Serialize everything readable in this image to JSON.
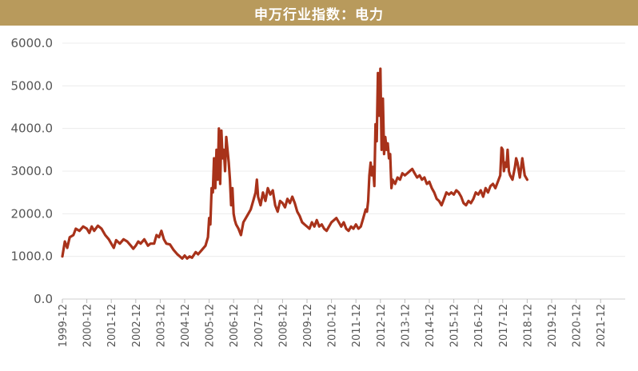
{
  "chart_data": {
    "type": "line",
    "title": "申万行业指数：电力",
    "xlabel": "",
    "ylabel": "",
    "ylim": [
      0,
      6000
    ],
    "yticks": [
      "0.0",
      "1000.0",
      "2000.0",
      "3000.0",
      "4000.0",
      "5000.0",
      "6000.0"
    ],
    "categories": [
      "1999-12",
      "2000-12",
      "2001-12",
      "2002-12",
      "2003-12",
      "2004-12",
      "2005-12",
      "2006-12",
      "2007-12",
      "2008-12",
      "2009-12",
      "2010-12",
      "2011-12",
      "2012-12",
      "2013-12",
      "2014-12",
      "2015-12",
      "2016-12",
      "2017-12",
      "2018-12",
      "2019-12",
      "2020-12",
      "2021-12"
    ],
    "series": [
      {
        "color": "#a8321a",
        "points": [
          [
            0.0,
            1000
          ],
          [
            0.1,
            1350
          ],
          [
            0.2,
            1200
          ],
          [
            0.3,
            1450
          ],
          [
            0.45,
            1500
          ],
          [
            0.55,
            1650
          ],
          [
            0.7,
            1600
          ],
          [
            0.85,
            1700
          ],
          [
            1.0,
            1650
          ],
          [
            1.1,
            1550
          ],
          [
            1.2,
            1700
          ],
          [
            1.3,
            1600
          ],
          [
            1.45,
            1720
          ],
          [
            1.6,
            1650
          ],
          [
            1.75,
            1500
          ],
          [
            1.9,
            1400
          ],
          [
            2.0,
            1300
          ],
          [
            2.1,
            1200
          ],
          [
            2.2,
            1380
          ],
          [
            2.35,
            1300
          ],
          [
            2.5,
            1400
          ],
          [
            2.65,
            1350
          ],
          [
            2.8,
            1250
          ],
          [
            2.9,
            1180
          ],
          [
            3.0,
            1250
          ],
          [
            3.1,
            1350
          ],
          [
            3.2,
            1300
          ],
          [
            3.35,
            1400
          ],
          [
            3.5,
            1250
          ],
          [
            3.6,
            1300
          ],
          [
            3.75,
            1300
          ],
          [
            3.85,
            1500
          ],
          [
            3.95,
            1450
          ],
          [
            4.05,
            1600
          ],
          [
            4.15,
            1400
          ],
          [
            4.25,
            1300
          ],
          [
            4.4,
            1280
          ],
          [
            4.55,
            1150
          ],
          [
            4.7,
            1050
          ],
          [
            4.8,
            1000
          ],
          [
            4.9,
            950
          ],
          [
            5.0,
            1020
          ],
          [
            5.1,
            950
          ],
          [
            5.2,
            1000
          ],
          [
            5.3,
            970
          ],
          [
            5.45,
            1100
          ],
          [
            5.55,
            1050
          ],
          [
            5.7,
            1150
          ],
          [
            5.85,
            1250
          ],
          [
            5.95,
            1450
          ],
          [
            6.0,
            1900
          ],
          [
            6.05,
            1750
          ],
          [
            6.1,
            2600
          ],
          [
            6.15,
            2500
          ],
          [
            6.2,
            3300
          ],
          [
            6.25,
            2600
          ],
          [
            6.3,
            3500
          ],
          [
            6.35,
            2800
          ],
          [
            6.4,
            4000
          ],
          [
            6.45,
            2700
          ],
          [
            6.5,
            3950
          ],
          [
            6.55,
            3300
          ],
          [
            6.6,
            3500
          ],
          [
            6.65,
            3000
          ],
          [
            6.7,
            3800
          ],
          [
            6.8,
            3200
          ],
          [
            6.85,
            2800
          ],
          [
            6.9,
            2200
          ],
          [
            6.95,
            2600
          ],
          [
            7.0,
            2000
          ],
          [
            7.05,
            1850
          ],
          [
            7.1,
            1750
          ],
          [
            7.2,
            1650
          ],
          [
            7.3,
            1500
          ],
          [
            7.4,
            1800
          ],
          [
            7.5,
            1900
          ],
          [
            7.6,
            2000
          ],
          [
            7.7,
            2100
          ],
          [
            7.8,
            2300
          ],
          [
            7.9,
            2500
          ],
          [
            7.95,
            2800
          ],
          [
            8.0,
            2400
          ],
          [
            8.1,
            2200
          ],
          [
            8.2,
            2500
          ],
          [
            8.3,
            2300
          ],
          [
            8.4,
            2600
          ],
          [
            8.5,
            2450
          ],
          [
            8.6,
            2550
          ],
          [
            8.7,
            2200
          ],
          [
            8.8,
            2050
          ],
          [
            8.9,
            2300
          ],
          [
            9.0,
            2250
          ],
          [
            9.1,
            2150
          ],
          [
            9.2,
            2350
          ],
          [
            9.3,
            2250
          ],
          [
            9.4,
            2400
          ],
          [
            9.5,
            2250
          ],
          [
            9.6,
            2050
          ],
          [
            9.7,
            1950
          ],
          [
            9.8,
            1800
          ],
          [
            9.9,
            1750
          ],
          [
            10.0,
            1700
          ],
          [
            10.1,
            1650
          ],
          [
            10.2,
            1800
          ],
          [
            10.3,
            1700
          ],
          [
            10.4,
            1850
          ],
          [
            10.5,
            1700
          ],
          [
            10.6,
            1750
          ],
          [
            10.7,
            1650
          ],
          [
            10.8,
            1600
          ],
          [
            10.9,
            1700
          ],
          [
            11.0,
            1800
          ],
          [
            11.1,
            1850
          ],
          [
            11.2,
            1900
          ],
          [
            11.3,
            1800
          ],
          [
            11.4,
            1700
          ],
          [
            11.5,
            1800
          ],
          [
            11.6,
            1650
          ],
          [
            11.7,
            1600
          ],
          [
            11.8,
            1700
          ],
          [
            11.9,
            1650
          ],
          [
            12.0,
            1750
          ],
          [
            12.1,
            1650
          ],
          [
            12.2,
            1700
          ],
          [
            12.3,
            1900
          ],
          [
            12.4,
            2100
          ],
          [
            12.45,
            2050
          ],
          [
            12.5,
            2300
          ],
          [
            12.55,
            2900
          ],
          [
            12.6,
            3200
          ],
          [
            12.65,
            2900
          ],
          [
            12.7,
            3100
          ],
          [
            12.75,
            2650
          ],
          [
            12.8,
            4100
          ],
          [
            12.85,
            3700
          ],
          [
            12.9,
            5300
          ],
          [
            12.95,
            4300
          ],
          [
            13.0,
            5400
          ],
          [
            13.05,
            3500
          ],
          [
            13.1,
            4700
          ],
          [
            13.15,
            3400
          ],
          [
            13.2,
            3800
          ],
          [
            13.25,
            3500
          ],
          [
            13.3,
            3650
          ],
          [
            13.35,
            3300
          ],
          [
            13.4,
            3400
          ],
          [
            13.45,
            2600
          ],
          [
            13.5,
            2800
          ],
          [
            13.6,
            2700
          ],
          [
            13.7,
            2850
          ],
          [
            13.8,
            2800
          ],
          [
            13.9,
            2950
          ],
          [
            14.0,
            2900
          ],
          [
            14.1,
            2950
          ],
          [
            14.2,
            3000
          ],
          [
            14.3,
            3050
          ],
          [
            14.4,
            2950
          ],
          [
            14.5,
            2850
          ],
          [
            14.6,
            2900
          ],
          [
            14.7,
            2800
          ],
          [
            14.8,
            2850
          ],
          [
            14.9,
            2700
          ],
          [
            15.0,
            2750
          ],
          [
            15.1,
            2600
          ],
          [
            15.2,
            2500
          ],
          [
            15.3,
            2350
          ],
          [
            15.4,
            2300
          ],
          [
            15.5,
            2200
          ],
          [
            15.6,
            2350
          ],
          [
            15.7,
            2500
          ],
          [
            15.8,
            2450
          ],
          [
            15.9,
            2500
          ],
          [
            16.0,
            2450
          ],
          [
            16.1,
            2550
          ],
          [
            16.2,
            2500
          ],
          [
            16.3,
            2400
          ],
          [
            16.4,
            2250
          ],
          [
            16.5,
            2200
          ],
          [
            16.6,
            2300
          ],
          [
            16.7,
            2250
          ],
          [
            16.8,
            2350
          ],
          [
            16.9,
            2500
          ],
          [
            17.0,
            2450
          ],
          [
            17.1,
            2550
          ],
          [
            17.2,
            2400
          ],
          [
            17.3,
            2600
          ],
          [
            17.4,
            2500
          ],
          [
            17.5,
            2650
          ],
          [
            17.6,
            2700
          ],
          [
            17.7,
            2600
          ],
          [
            17.8,
            2750
          ],
          [
            17.9,
            2900
          ],
          [
            17.95,
            3550
          ],
          [
            18.0,
            3500
          ],
          [
            18.05,
            3000
          ],
          [
            18.1,
            3200
          ],
          [
            18.15,
            3100
          ],
          [
            18.2,
            3500
          ],
          [
            18.25,
            3000
          ],
          [
            18.3,
            2900
          ],
          [
            18.4,
            2800
          ],
          [
            18.5,
            3100
          ],
          [
            18.55,
            3300
          ],
          [
            18.6,
            3200
          ],
          [
            18.7,
            2850
          ],
          [
            18.8,
            3300
          ],
          [
            18.9,
            2900
          ],
          [
            19.0,
            2800
          ]
        ]
      }
    ]
  }
}
